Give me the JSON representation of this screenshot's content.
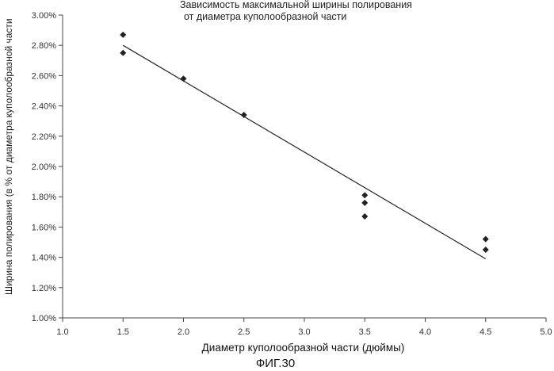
{
  "chart_data": {
    "type": "scatter",
    "title_lines": [
      "Зависимость максимальной ширины полирования",
      "от диаметра куполообразной части"
    ],
    "xlabel": "Диаметр куполообразной части (дюймы)",
    "ylabel": "Ширина полирования (в % от диаметра куполообразной части",
    "figure_label": "ФИГ.30",
    "xlim": [
      1.0,
      5.0
    ],
    "ylim": [
      1.0,
      3.0
    ],
    "x_ticks": [
      "1.0",
      "1.5",
      "2.0",
      "2.5",
      "3.0",
      "3.5",
      "4.0",
      "4.5",
      "5.0"
    ],
    "y_ticks": [
      "1.00%",
      "1.20%",
      "1.40%",
      "1.60%",
      "1.80%",
      "2.00%",
      "2.20%",
      "2.40%",
      "2.60%",
      "2.80%",
      "3.00%"
    ],
    "points": [
      {
        "x": 1.5,
        "y": 2.87
      },
      {
        "x": 1.5,
        "y": 2.75
      },
      {
        "x": 2.0,
        "y": 2.58
      },
      {
        "x": 2.5,
        "y": 2.34
      },
      {
        "x": 3.5,
        "y": 1.81
      },
      {
        "x": 3.5,
        "y": 1.76
      },
      {
        "x": 3.5,
        "y": 1.67
      },
      {
        "x": 4.5,
        "y": 1.52
      },
      {
        "x": 4.5,
        "y": 1.45
      }
    ],
    "trendline": {
      "x1": 1.5,
      "y1": 2.8,
      "x2": 4.5,
      "y2": 1.39
    },
    "grid": false,
    "colors": {
      "marker": "#222222",
      "line": "#222222",
      "axis": "#444444"
    }
  }
}
